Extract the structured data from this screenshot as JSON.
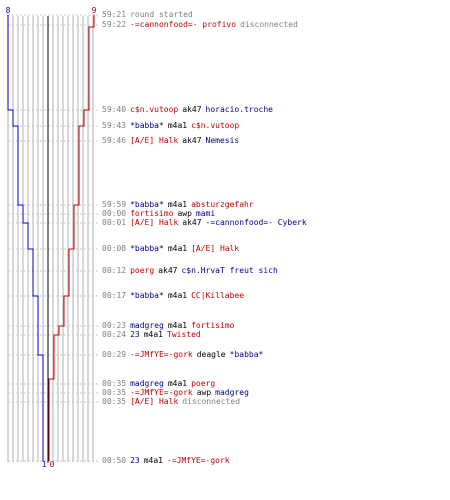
{
  "score": {
    "blue": "8",
    "red": "9",
    "blue_end": "1",
    "red_end": "0"
  },
  "colors": {
    "blue": "#0000c0",
    "red": "#c00000",
    "grid": "#b0b0b0",
    "dash": "#c8c8c8"
  },
  "events": [
    {
      "time": "59:21",
      "parts": [
        {
          "text": "round started",
          "c": "gray"
        }
      ]
    },
    {
      "time": "59:22",
      "parts": [
        {
          "text": "-=cannonfood=- profivo",
          "c": "red"
        },
        {
          "text": "disconnected",
          "c": "gray"
        }
      ]
    },
    {
      "time": "59:40",
      "parts": [
        {
          "text": "c$n.vutoop",
          "c": "red"
        },
        {
          "text": "ak47",
          "c": "black"
        },
        {
          "text": "horacio.troche",
          "c": "blue"
        }
      ]
    },
    {
      "time": "59:43",
      "parts": [
        {
          "text": "*babba*",
          "c": "blue"
        },
        {
          "text": "m4a1",
          "c": "black"
        },
        {
          "text": "c$n.vutoop",
          "c": "red"
        }
      ]
    },
    {
      "time": "59:46",
      "parts": [
        {
          "text": "[A/E] Halk",
          "c": "red"
        },
        {
          "text": "ak47",
          "c": "black"
        },
        {
          "text": "Nemesis",
          "c": "blue"
        }
      ]
    },
    {
      "time": "59:59",
      "parts": [
        {
          "text": "*babba*",
          "c": "blue"
        },
        {
          "text": "m4a1",
          "c": "black"
        },
        {
          "text": "absturzgefahr",
          "c": "red"
        }
      ]
    },
    {
      "time": "00:00",
      "parts": [
        {
          "text": "fortisimo",
          "c": "red"
        },
        {
          "text": "awp",
          "c": "black"
        },
        {
          "text": "mami",
          "c": "blue"
        }
      ]
    },
    {
      "time": "00:01",
      "parts": [
        {
          "text": "[A/E] Halk",
          "c": "red"
        },
        {
          "text": "ak47",
          "c": "black"
        },
        {
          "text": "-=cannonfood=- Cyberk",
          "c": "blue"
        }
      ]
    },
    {
      "time": "00:08",
      "parts": [
        {
          "text": "*babba*",
          "c": "blue"
        },
        {
          "text": "m4a1",
          "c": "black"
        },
        {
          "text": "[A/E] Halk",
          "c": "red"
        }
      ]
    },
    {
      "time": "00:12",
      "parts": [
        {
          "text": "poerg",
          "c": "red"
        },
        {
          "text": "ak47",
          "c": "black"
        },
        {
          "text": "c$n.HrvaT freut sich",
          "c": "blue"
        }
      ]
    },
    {
      "time": "00:17",
      "parts": [
        {
          "text": "*babba*",
          "c": "blue"
        },
        {
          "text": "m4a1",
          "c": "black"
        },
        {
          "text": "CC|Killabee",
          "c": "red"
        }
      ]
    },
    {
      "time": "00:23",
      "parts": [
        {
          "text": "madgreg",
          "c": "blue"
        },
        {
          "text": "m4a1",
          "c": "black"
        },
        {
          "text": "fortisimo",
          "c": "red"
        }
      ]
    },
    {
      "time": "00:24",
      "parts": [
        {
          "text": "23",
          "c": "blue"
        },
        {
          "text": "m4a1",
          "c": "black"
        },
        {
          "text": "Twisted",
          "c": "red"
        }
      ]
    },
    {
      "time": "00:29",
      "parts": [
        {
          "text": "-=JMfYE=-gork",
          "c": "red"
        },
        {
          "text": "deagle",
          "c": "black"
        },
        {
          "text": "*babba*",
          "c": "blue"
        }
      ]
    },
    {
      "time": "00:35",
      "parts": [
        {
          "text": "madgreg",
          "c": "blue"
        },
        {
          "text": "m4a1",
          "c": "black"
        },
        {
          "text": "poerg",
          "c": "red"
        }
      ]
    },
    {
      "time": "00:35",
      "parts": [
        {
          "text": "-=JMfYE=-gork",
          "c": "red"
        },
        {
          "text": "awp",
          "c": "black"
        },
        {
          "text": "madgreg",
          "c": "blue"
        }
      ]
    },
    {
      "time": "00:35",
      "parts": [
        {
          "text": "[A/E] Halk",
          "c": "red"
        },
        {
          "text": "disconnected",
          "c": "gray"
        }
      ]
    },
    {
      "time": "00:50",
      "parts": [
        {
          "text": "23",
          "c": "blue"
        },
        {
          "text": "m4a1",
          "c": "black"
        },
        {
          "text": "-=JMfYE=-gork",
          "c": "red"
        }
      ]
    }
  ]
}
